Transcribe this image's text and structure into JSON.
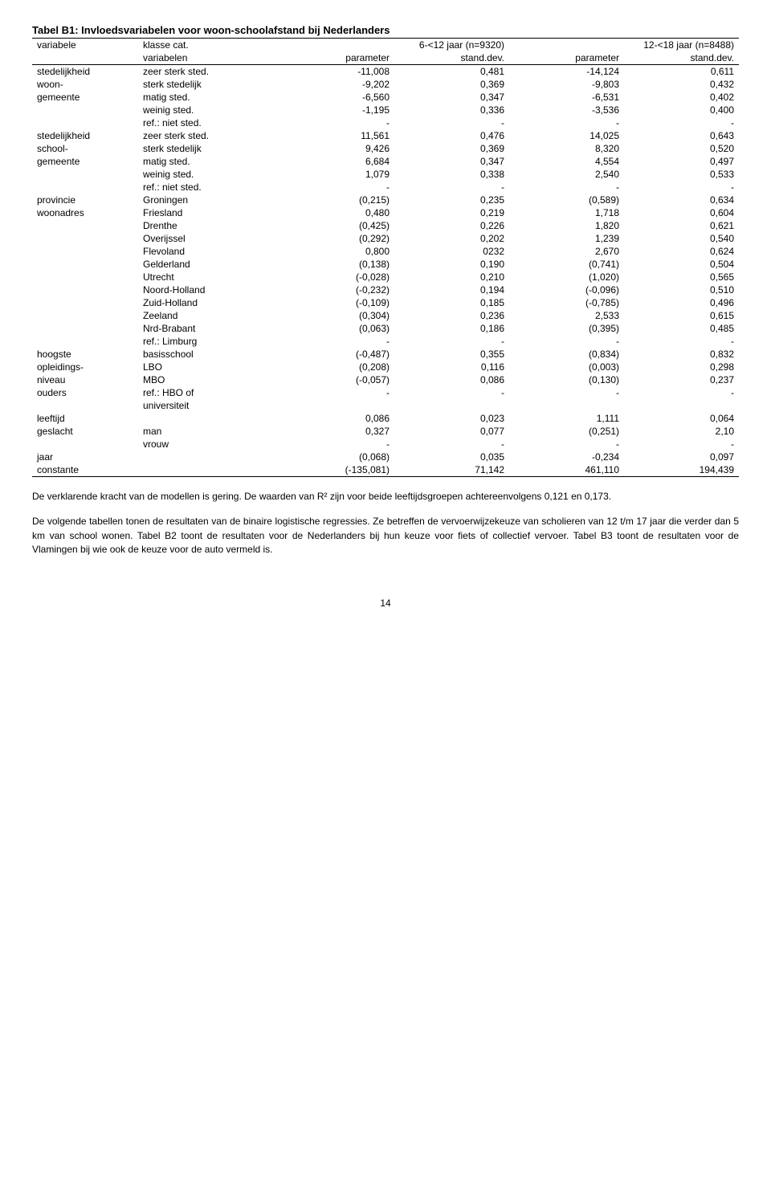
{
  "title": "Tabel B1: Invloedsvariabelen voor woon-schoolafstand bij Nederlanders",
  "header": {
    "c1": "variabele",
    "c2": "klasse cat.",
    "c3span": "6-<12 jaar (n=9320)",
    "c4span": "12-<18 jaar (n=8488)",
    "sub_c2": "variabelen",
    "sub_c3": "parameter",
    "sub_c4": "stand.dev.",
    "sub_c5": "parameter",
    "sub_c6": "stand.dev."
  },
  "rows": [
    [
      "stedelijkheid",
      "zeer sterk sted.",
      "-11,008",
      "0,481",
      "-14,124",
      "0,611"
    ],
    [
      "woon-",
      "sterk stedelijk",
      "-9,202",
      "0,369",
      "-9,803",
      "0,432"
    ],
    [
      "gemeente",
      "matig sted.",
      "-6,560",
      "0,347",
      "-6,531",
      "0,402"
    ],
    [
      "",
      "weinig sted.",
      "-1,195",
      "0,336",
      "-3,536",
      "0,400"
    ],
    [
      "",
      "ref.: niet sted.",
      "-",
      "-",
      "-",
      "-"
    ],
    [
      "stedelijkheid",
      "zeer sterk sted.",
      "11,561",
      "0,476",
      "14,025",
      "0,643"
    ],
    [
      "school-",
      "sterk stedelijk",
      "9,426",
      "0,369",
      "8,320",
      "0,520"
    ],
    [
      "gemeente",
      "matig sted.",
      "6,684",
      "0,347",
      "4,554",
      "0,497"
    ],
    [
      "",
      "weinig sted.",
      "1,079",
      "0,338",
      "2,540",
      "0,533"
    ],
    [
      "",
      "ref.: niet sted.",
      "-",
      "-",
      "-",
      "-"
    ],
    [
      "provincie",
      "Groningen",
      "(0,215)",
      "0,235",
      "(0,589)",
      "0,634"
    ],
    [
      "woonadres",
      "Friesland",
      "0,480",
      "0,219",
      "1,718",
      "0,604"
    ],
    [
      "",
      "Drenthe",
      "(0,425)",
      "0,226",
      "1,820",
      "0,621"
    ],
    [
      "",
      "Overijssel",
      "(0,292)",
      "0,202",
      "1,239",
      "0,540"
    ],
    [
      "",
      "Flevoland",
      "0,800",
      "0232",
      "2,670",
      "0,624"
    ],
    [
      "",
      "Gelderland",
      "(0,138)",
      "0,190",
      "(0,741)",
      "0,504"
    ],
    [
      "",
      "Utrecht",
      "(-0,028)",
      "0,210",
      "(1,020)",
      "0,565"
    ],
    [
      "",
      "Noord-Holland",
      "(-0,232)",
      "0,194",
      "(-0,096)",
      "0,510"
    ],
    [
      "",
      "Zuid-Holland",
      "(-0,109)",
      "0,185",
      "(-0,785)",
      "0,496"
    ],
    [
      "",
      "Zeeland",
      "(0,304)",
      "0,236",
      "2,533",
      "0,615"
    ],
    [
      "",
      "Nrd-Brabant",
      "(0,063)",
      "0,186",
      "(0,395)",
      "0,485"
    ],
    [
      "",
      "ref.: Limburg",
      "-",
      "-",
      "-",
      "-"
    ],
    [
      "hoogste",
      "basisschool",
      "(-0,487)",
      "0,355",
      "(0,834)",
      "0,832"
    ],
    [
      "opleidings-",
      "LBO",
      "(0,208)",
      "0,116",
      "(0,003)",
      "0,298"
    ],
    [
      "niveau",
      "MBO",
      "(-0,057)",
      "0,086",
      "(0,130)",
      "0,237"
    ],
    [
      "ouders",
      "ref.: HBO of",
      "-",
      "-",
      "-",
      "-"
    ],
    [
      "",
      "universiteit",
      "",
      "",
      "",
      ""
    ],
    [
      "leeftijd",
      "",
      "0,086",
      "0,023",
      "1,111",
      "0,064"
    ],
    [
      "geslacht",
      "man",
      "0,327",
      "0,077",
      "(0,251)",
      "2,10"
    ],
    [
      "",
      "vrouw",
      "-",
      "-",
      "-",
      "-"
    ],
    [
      "jaar",
      "",
      "(0,068)",
      "0,035",
      "-0,234",
      "0,097"
    ],
    [
      "constante",
      "",
      "(-135,081)",
      "71,142",
      "461,110",
      "194,439"
    ]
  ],
  "paragraphs": [
    "De verklarende kracht van de modellen is gering. De waarden van R² zijn voor beide leeftijdsgroepen achtereenvolgens 0,121 en 0,173.",
    "De volgende tabellen tonen de resultaten van de binaire logistische regressies. Ze betreffen de vervoerwijzekeuze van scholieren van 12 t/m 17 jaar die verder dan 5 km van school wonen. Tabel B2 toont de resultaten voor de Nederlanders bij hun keuze voor fiets of collectief vervoer. Tabel B3 toont de resultaten voor de Vlamingen bij wie ook de keuze voor de auto vermeld is."
  ],
  "page_number": "14"
}
